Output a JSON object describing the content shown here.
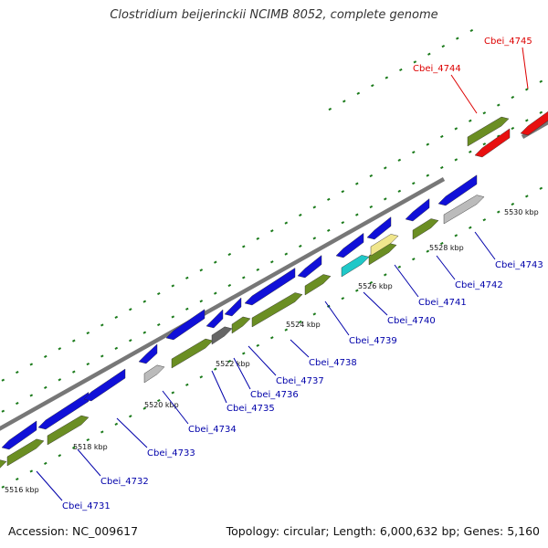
{
  "title": "Clostridium beijerinckii NCIMB 8052, complete genome",
  "footer": {
    "accession": "Accession: NC_009617",
    "summary": "Topology: circular; Length: 6,000,632 bp; Genes: 5,160"
  },
  "colors": {
    "backbone": "#777777",
    "tick": "#1a7a1a",
    "cds_strand_plus": "#1010d8",
    "cds_strand_minus": "#6b8e23",
    "highlight": "#e81010",
    "pseudo": "#bbbbbb",
    "rna": "#20c8c8",
    "other": "#f0e68c",
    "label_default": "#0000aa",
    "label_highlight": "#dd0000"
  },
  "scale_ticks": [
    "5516 kbp",
    "5518 kbp",
    "5520 kbp",
    "5522 kbp",
    "5524 kbp",
    "5526 kbp",
    "5528 kbp",
    "5530 kbp"
  ],
  "gene_labels": [
    {
      "text": "Cbei_4731",
      "highlight": false
    },
    {
      "text": "Cbei_4732",
      "highlight": false
    },
    {
      "text": "Cbei_4733",
      "highlight": false
    },
    {
      "text": "Cbei_4734",
      "highlight": false
    },
    {
      "text": "Cbei_4735",
      "highlight": false
    },
    {
      "text": "Cbei_4736",
      "highlight": false
    },
    {
      "text": "Cbei_4737",
      "highlight": false
    },
    {
      "text": "Cbei_4738",
      "highlight": false
    },
    {
      "text": "Cbei_4739",
      "highlight": false
    },
    {
      "text": "Cbei_4740",
      "highlight": false
    },
    {
      "text": "Cbei_4741",
      "highlight": false
    },
    {
      "text": "Cbei_4742",
      "highlight": false
    },
    {
      "text": "Cbei_4743",
      "highlight": false
    },
    {
      "text": "Cbei_4744",
      "highlight": true
    },
    {
      "text": "Cbei_4745",
      "highlight": true
    }
  ]
}
